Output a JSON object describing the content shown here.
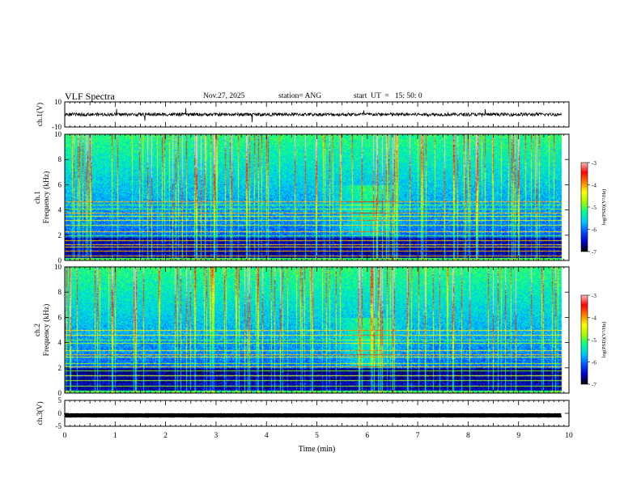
{
  "header": {
    "title": "VLF Spectra",
    "date": "Nov.27, 2025",
    "station": "station= ANG",
    "start": "start  UT  =   15: 50: 0"
  },
  "chart_data": [
    {
      "type": "line",
      "panel": "waveform-ch1",
      "ylabel": "ch.1(V)",
      "ylim": [
        -10,
        10
      ],
      "y_ticks": [
        "10",
        "-10"
      ],
      "baseline_value": 0,
      "line_color": "#000000"
    },
    {
      "type": "heatmap",
      "panel": "spectrogram-ch1",
      "ylabel": "ch.1\nFrequency (kHz)",
      "ylim": [
        0,
        10
      ],
      "y_ticks": [
        "0",
        "2",
        "4",
        "6",
        "8",
        "10"
      ],
      "colorbar": {
        "label": "log(PSD)(V²/Hz)",
        "range": [
          -7,
          -3
        ],
        "tick_labels": [
          "-3",
          "-4",
          "-5",
          "-6",
          "-7"
        ],
        "colormap": [
          "#000000",
          "#0000c8",
          "#0050ff",
          "#00c8ff",
          "#00ff90",
          "#a0ff00",
          "#ffff00",
          "#ff8000",
          "#ff0000",
          "#ffc0c0"
        ]
      }
    },
    {
      "type": "heatmap",
      "panel": "spectrogram-ch2",
      "ylabel": "ch.2\nFrequency (kHz)",
      "ylim": [
        0,
        10
      ],
      "y_ticks": [
        "0",
        "2",
        "4",
        "6",
        "8",
        "10"
      ],
      "colorbar": {
        "label": "log(PSD)(V²/Hz)",
        "range": [
          -7,
          -3
        ],
        "tick_labels": [
          "-3",
          "-4",
          "-5",
          "-6",
          "-7"
        ]
      }
    },
    {
      "type": "line",
      "panel": "waveform-ch3",
      "ylabel": "ch.3(V)",
      "ylim": [
        -5,
        5
      ],
      "y_ticks": [
        "5",
        "0",
        "-5"
      ],
      "baseline_value": -0.8,
      "line_color": "#000000"
    }
  ],
  "x_axis": {
    "label": "Time  (min)",
    "range": [
      0,
      10
    ],
    "tick_labels": [
      "0",
      "1",
      "2",
      "3",
      "4",
      "5",
      "6",
      "7",
      "8",
      "9",
      "10"
    ],
    "data_end": 9.85
  }
}
